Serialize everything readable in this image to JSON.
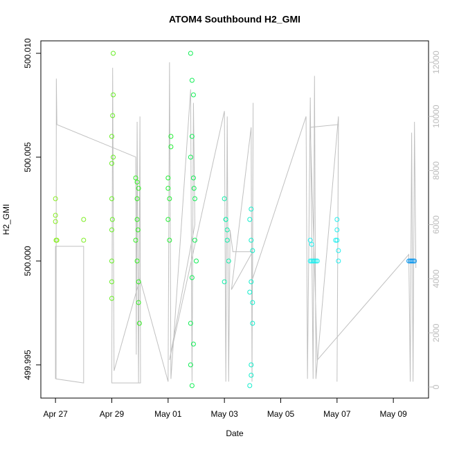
{
  "chart_data": {
    "type": "scatter",
    "title": "ATOM4 Southbound H2_GMI",
    "x_label": "Date",
    "y_label": "H2_GMI",
    "xlim": [
      -0.52,
      13.25
    ],
    "xticks": [
      {
        "value": 0,
        "label": "Apr 27"
      },
      {
        "value": 2,
        "label": "Apr 29"
      },
      {
        "value": 4,
        "label": "May 01"
      },
      {
        "value": 6,
        "label": "May 03"
      },
      {
        "value": 8,
        "label": "May 05"
      },
      {
        "value": 10,
        "label": "May 07"
      },
      {
        "value": 12,
        "label": "May 09"
      }
    ],
    "ylim": [
      499.9934,
      500.0106
    ],
    "yticks": [
      499.995,
      {
        "value": 500,
        "label": "500.000"
      },
      500.005,
      {
        "value": 500.01,
        "label": "500.010"
      }
    ],
    "y2lim": [
      -409,
      12794
    ],
    "y2ticks": [
      0,
      2000,
      4000,
      6000,
      8000,
      10000,
      12000
    ],
    "series": [
      {
        "type": "line",
        "axis": "y2",
        "color": "#c0c0c0",
        "x": [
          0.0,
          0.0,
          1.0,
          1.0,
          0.02,
          0.03,
          0.05,
          2.85,
          2.87,
          2.9,
          2.95,
          3.0,
          3.02,
          2.0,
          2.03,
          2.08,
          3.0,
          4.0,
          4.05,
          4.1,
          4.8,
          4.85,
          4.9,
          4.95,
          4.05,
          6.0,
          6.05,
          6.1,
          6.15,
          6.2,
          6.3,
          7.0,
          6.25,
          6.95,
          6.98,
          7.02,
          7.0,
          8.9,
          8.95,
          9.05,
          9.15,
          9.2,
          9.25,
          10.05,
          10.0,
          10.05,
          9.05,
          9.3,
          12.55,
          12.6,
          12.65,
          12.7,
          12.75,
          12.8
        ],
        "values": [
          300,
          5200,
          5200,
          150,
          300,
          11400,
          9700,
          8500,
          1200,
          9800,
          150,
          10000,
          150,
          150,
          11800,
          600,
          4000,
          200,
          12000,
          300,
          11000,
          200,
          10500,
          6000,
          1000,
          10200,
          200,
          10000,
          200,
          5800,
          5000,
          5000,
          3600,
          9600,
          200,
          10500,
          4000,
          10000,
          300,
          10700,
          300,
          11500,
          300,
          10000,
          200,
          9700,
          9600,
          1000,
          4900,
          200,
          9400,
          200,
          9800,
          4400
        ]
      },
      {
        "color": "#88ee22",
        "x": [
          0.0,
          0.02,
          0.0,
          0.05,
          0.0
        ],
        "values": [
          500.003,
          500.001,
          500.0022,
          500.001,
          500.0019
        ]
      },
      {
        "color": "#7cee22",
        "x": [
          1.0,
          1.0
        ],
        "values": [
          500.002,
          500.001
        ]
      },
      {
        "color": "#66ee22",
        "x": [
          2.05,
          2.05,
          2.03,
          2.0,
          2.05,
          2.0,
          2.0,
          2.02,
          2.0,
          2.0,
          2.0,
          2.0
        ],
        "values": [
          500.01,
          500.008,
          500.007,
          500.006,
          500.005,
          500.0047,
          500.003,
          500.002,
          500.0015,
          500.0,
          499.999,
          499.9982
        ]
      },
      {
        "color": "#33ee22",
        "x": [
          2.85,
          2.9,
          2.95,
          2.9,
          2.85,
          2.9,
          2.95,
          2.95,
          2.98,
          2.9,
          2.93
        ],
        "values": [
          500.004,
          500.003,
          500.0035,
          500.002,
          500.001,
          500.0,
          499.999,
          499.998,
          499.997,
          500.0038,
          500.0015
        ]
      },
      {
        "color": "#22ee33",
        "x": [
          4.0,
          4.05,
          4.0,
          4.05,
          4.1,
          4.1,
          4.0
        ],
        "values": [
          500.004,
          500.003,
          500.002,
          500.001,
          500.006,
          500.0055,
          500.0035
        ]
      },
      {
        "color": "#11ee55",
        "x": [
          4.8,
          4.85,
          4.9,
          4.85,
          4.8,
          4.9,
          4.95,
          4.95,
          5.0,
          4.85,
          4.8,
          4.9,
          4.8,
          4.85,
          4.92
        ],
        "values": [
          500.01,
          500.0087,
          500.008,
          500.006,
          500.005,
          500.004,
          500.003,
          500.001,
          500.0,
          499.9992,
          499.997,
          499.996,
          499.995,
          499.994,
          500.0035
        ]
      },
      {
        "color": "#11eeaa",
        "x": [
          6.0,
          6.05,
          6.1,
          6.15,
          6.0,
          6.1,
          6.05
        ],
        "values": [
          500.003,
          500.002,
          500.001,
          500.0,
          499.999,
          500.0015,
          500.002
        ]
      },
      {
        "color": "#11eecc",
        "x": [
          6.9,
          6.95,
          6.95,
          7.0,
          6.95,
          6.9,
          7.0,
          7.0,
          6.95,
          6.95,
          6.9
        ],
        "values": [
          500.002,
          500.0025,
          500.001,
          500.0005,
          499.999,
          499.9985,
          499.998,
          499.997,
          499.995,
          499.9945,
          499.994
        ]
      },
      {
        "color": "#22eeee",
        "x": [
          9.05,
          9.1,
          9.15,
          9.2,
          9.25,
          9.3,
          9.05,
          9.1
        ],
        "values": [
          500.0,
          500.0,
          500.0,
          500.0,
          500.0,
          500.0,
          500.001,
          500.0008
        ]
      },
      {
        "color": "#22eeee",
        "x": [
          9.95,
          10.0,
          10.05,
          10.0,
          10.0,
          10.05
        ],
        "values": [
          500.001,
          500.001,
          500.0,
          500.002,
          500.0015,
          500.0005
        ]
      },
      {
        "color": "#1199ee",
        "x": [
          12.55,
          12.6,
          12.65,
          12.7,
          12.75
        ],
        "values": [
          500.0,
          500.0,
          500.0,
          500.0,
          500.0
        ]
      }
    ]
  }
}
